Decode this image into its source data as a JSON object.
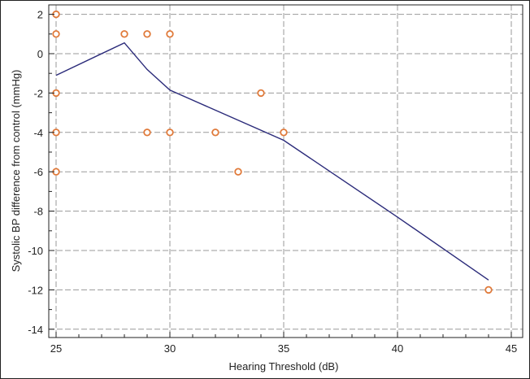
{
  "chart_data": {
    "type": "scatter",
    "xlabel": "Hearing Threshold (dB)",
    "ylabel": "Systolic BP difference from control (mmHg)",
    "xlim": [
      25,
      45
    ],
    "ylim": [
      -14.5,
      2.3
    ],
    "x_ticks": [
      25,
      30,
      35,
      40,
      45
    ],
    "y_ticks": [
      2,
      0,
      -2,
      -4,
      -6,
      -8,
      -10,
      -12,
      -14
    ],
    "grid": true,
    "colors": {
      "points": "#e07a3a",
      "fit_line": "#2b2b7a",
      "grid": "#9a9a9a"
    },
    "points": [
      {
        "x": 25,
        "y": 2
      },
      {
        "x": 25,
        "y": 1
      },
      {
        "x": 25,
        "y": -2
      },
      {
        "x": 25,
        "y": -4
      },
      {
        "x": 25,
        "y": -6
      },
      {
        "x": 28,
        "y": 1
      },
      {
        "x": 29,
        "y": 1
      },
      {
        "x": 30,
        "y": 1
      },
      {
        "x": 29,
        "y": -4
      },
      {
        "x": 30,
        "y": -4
      },
      {
        "x": 32,
        "y": -4
      },
      {
        "x": 33,
        "y": -6
      },
      {
        "x": 34,
        "y": -2
      },
      {
        "x": 35,
        "y": -4
      },
      {
        "x": 44,
        "y": -12
      }
    ],
    "fit_line": [
      {
        "x": 25,
        "y": -1.1
      },
      {
        "x": 28,
        "y": 0.55
      },
      {
        "x": 29,
        "y": -0.8
      },
      {
        "x": 30,
        "y": -1.85
      },
      {
        "x": 35,
        "y": -4.4
      },
      {
        "x": 40,
        "y": -8.3
      },
      {
        "x": 44,
        "y": -11.5
      }
    ]
  }
}
